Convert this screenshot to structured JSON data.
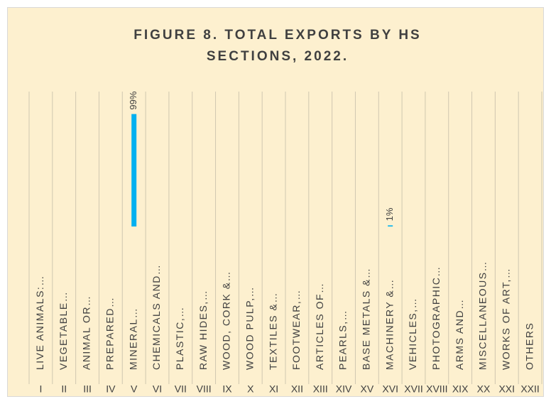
{
  "chart_data": {
    "type": "bar",
    "title": "FIGURE 8. TOTAL EXPORTS BY HS SECTIONS, 2022.",
    "sections": [
      "I",
      "II",
      "III",
      "IV",
      "V",
      "VI",
      "VII",
      "VIII",
      "IX",
      "X",
      "XI",
      "XII",
      "XIII",
      "XIV",
      "XV",
      "XVI",
      "XVII",
      "XVIII",
      "XIX",
      "XX",
      "XXI",
      "XXII"
    ],
    "categories": [
      "LIVE ANIMALS:…",
      "VEGETABLE…",
      "ANIMAL OR…",
      "PREPARED…",
      "MINERAL…",
      "CHEMICALS AND…",
      "PLASTIC,…",
      "RAW HIDES,…",
      "WOOD, CORK &…",
      "WOOD PULP,…",
      "TEXTILES &…",
      "FOOTWEAR,…",
      "ARTICLES OF…",
      "PEARLS,…",
      "BASE METALS &…",
      "MACHINERY &…",
      "VEHICLES,…",
      "PHOTOGRAPHIC…",
      "ARMS AND…",
      "MISCELLANEOUS…",
      "WORKS OF ART,…",
      "OTHERS"
    ],
    "values": [
      0,
      0,
      0,
      0,
      99,
      0,
      0,
      0,
      0,
      0,
      0,
      0,
      0,
      0,
      0,
      1,
      0,
      0,
      0,
      0,
      0,
      0
    ],
    "value_labels": [
      null,
      null,
      null,
      null,
      "99%",
      null,
      null,
      null,
      null,
      null,
      null,
      null,
      null,
      null,
      null,
      "1%",
      null,
      null,
      null,
      null,
      null,
      null
    ],
    "color": "#00b0f0"
  }
}
